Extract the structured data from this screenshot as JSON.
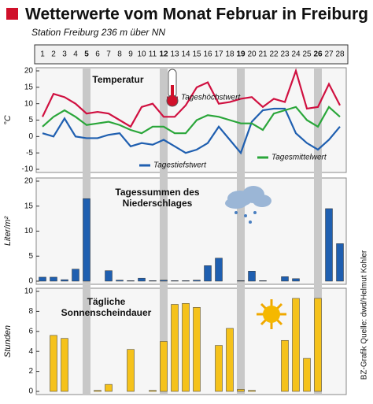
{
  "header": {
    "title": "Wetterwerte vom Monat Februar in Freiburg",
    "subtitle": "Station Freiburg 236 m über NN"
  },
  "source": "BZ-Grafik Quelle: dwd/Helmut Kohler",
  "chart_data": [
    {
      "type": "line",
      "title": [
        "Temperatur"
      ],
      "ylabel": "°C",
      "categories": [
        1,
        2,
        3,
        4,
        5,
        6,
        7,
        8,
        9,
        10,
        11,
        12,
        13,
        14,
        15,
        16,
        17,
        18,
        19,
        20,
        21,
        22,
        23,
        24,
        25,
        26,
        27,
        28
      ],
      "highlight_categories": [
        5,
        12,
        19,
        26
      ],
      "highlight_color": "#d0102a",
      "ylim": [
        -10,
        20
      ],
      "yticks": [
        -10,
        -5,
        0,
        5,
        10,
        15,
        20
      ],
      "series": [
        {
          "name": "Tageshöchstwert",
          "color": "#d01040",
          "values": [
            6,
            13,
            12,
            10,
            7,
            7.5,
            7,
            5,
            3,
            9,
            10,
            6,
            6,
            9.5,
            15,
            16.5,
            10,
            10.5,
            11.5,
            12,
            9,
            11.5,
            10.5,
            20,
            8.5,
            9,
            16,
            9.5
          ]
        },
        {
          "name": "Tagestiefstwert",
          "color": "#1f5fb0",
          "values": [
            1,
            0,
            5.5,
            0,
            -0.5,
            -0.5,
            0.5,
            1,
            -3,
            -2,
            -2.5,
            -1,
            -3,
            -5,
            -4,
            -2,
            3,
            -1,
            -5,
            4.5,
            8,
            8.5,
            8.5,
            1,
            -2,
            -4,
            -1,
            3
          ]
        },
        {
          "name": "Tagesmittelwert",
          "color": "#2aa63a",
          "values": [
            3,
            6,
            8,
            6,
            3.5,
            4,
            4.5,
            3.5,
            2,
            1,
            3,
            3,
            1,
            1,
            5,
            6.5,
            6,
            5,
            4,
            4,
            2,
            7,
            8,
            9,
            5,
            3,
            9,
            6
          ]
        }
      ]
    },
    {
      "type": "bar",
      "title": [
        "Tagessummen des",
        "Niederschlages"
      ],
      "ylabel": "Liter/m²",
      "color": "#1f5fb0",
      "ylim": [
        0,
        20
      ],
      "yticks": [
        0,
        5,
        10,
        15,
        20
      ],
      "values": [
        0.8,
        0.8,
        0.3,
        2.4,
        16.5,
        0,
        2.1,
        0.2,
        0.1,
        0.6,
        0.1,
        0.2,
        0.1,
        0.1,
        0.2,
        3.1,
        4.6,
        0,
        0.1,
        2.0,
        0.1,
        0,
        0.9,
        0.5,
        0,
        0,
        14.5,
        7.5
      ]
    },
    {
      "type": "bar",
      "title": [
        "Tägliche",
        "Sonnenscheindauer"
      ],
      "ylabel": "Stunden",
      "color": "#f5c21b",
      "ylim": [
        0,
        10
      ],
      "yticks": [
        0,
        2,
        4,
        6,
        8,
        10
      ],
      "values": [
        0,
        5.6,
        5.3,
        0,
        0,
        0.1,
        0.7,
        0,
        4.2,
        0,
        0.1,
        5.0,
        8.7,
        8.8,
        8.4,
        0,
        4.6,
        6.3,
        0.2,
        0.1,
        0,
        0,
        5.1,
        9.3,
        3.3,
        9.3,
        0,
        0
      ]
    }
  ]
}
